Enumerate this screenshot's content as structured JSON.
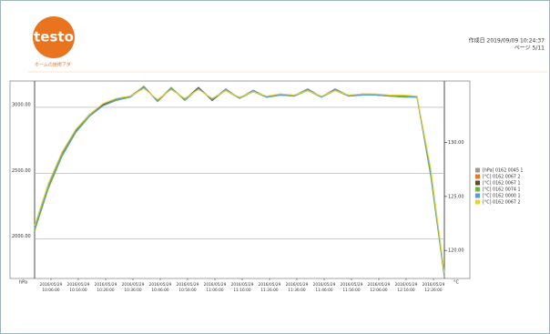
{
  "header": {
    "logo": "testo",
    "tagline": "ホームの技術アダ",
    "created": "作成日 2019/09/09 10:24:37",
    "page": "ページ 5/11"
  },
  "chart_data": {
    "type": "line",
    "y_unit": "hPa",
    "y2_unit": "°C",
    "x": [
      0,
      5,
      10,
      15,
      20,
      25,
      30,
      35,
      40,
      45,
      50,
      55,
      60,
      65,
      70,
      75,
      80,
      85,
      90,
      95,
      100,
      105,
      110,
      115,
      120,
      125,
      130,
      135,
      140,
      145,
      150
    ],
    "xlim": [
      0,
      150
    ],
    "xticks": [
      {
        "value": 6,
        "label": "2016/05/29 10:06:00"
      },
      {
        "value": 16,
        "label": "2016/05/29 10:16:00"
      },
      {
        "value": 26,
        "label": "2016/05/29 10:26:00"
      },
      {
        "value": 36,
        "label": "2016/05/29 10:36:00"
      },
      {
        "value": 46,
        "label": "2016/05/29 10:46:00"
      },
      {
        "value": 56,
        "label": "2016/05/29 10:56:00"
      },
      {
        "value": 66,
        "label": "2016/05/29 11:06:00"
      },
      {
        "value": 76,
        "label": "2016/05/29 11:16:00"
      },
      {
        "value": 86,
        "label": "2016/05/29 11:26:00"
      },
      {
        "value": 96,
        "label": "2016/05/29 11:36:00"
      },
      {
        "value": 106,
        "label": "2016/05/29 11:46:00"
      },
      {
        "value": 116,
        "label": "2016/05/29 11:56:00"
      },
      {
        "value": 126,
        "label": "2016/05/29 12:06:00"
      },
      {
        "value": 136,
        "label": "2016/05/29 12:16:00"
      },
      {
        "value": 146,
        "label": "2016/05/29 12:26:00"
      }
    ],
    "ylim": [
      1700,
      3200
    ],
    "yticks": [
      {
        "value": 2000,
        "label": "2000.00"
      },
      {
        "value": 2500,
        "label": "2500.00"
      },
      {
        "value": 3000,
        "label": "3000.00"
      }
    ],
    "y2lim": [
      117.4,
      135.7
    ],
    "y2ticks": [
      {
        "value": 120,
        "label": "120.00"
      },
      {
        "value": 125,
        "label": "125.00"
      },
      {
        "value": 130,
        "label": "130.00"
      }
    ],
    "grid": true,
    "legend": "right",
    "series": [
      {
        "name": "[hPa] 0162 0045 1",
        "color": "#9a9a9a",
        "values": [
          2080,
          2400,
          2640,
          2820,
          2940,
          3020,
          3060,
          3080,
          3160,
          3050,
          3150,
          3060,
          3150,
          3060,
          3140,
          3070,
          3130,
          3080,
          3100,
          3090,
          3140,
          3080,
          3140,
          3090,
          3100,
          3100,
          3090,
          3090,
          3080,
          2500,
          1720
        ]
      },
      {
        "name": "[°C] 0162 0067 2",
        "color": "#e8772e",
        "axis": "y2",
        "values": [
          122.0,
          125.9,
          128.8,
          131.0,
          132.5,
          133.5,
          134.0,
          134.2,
          135.2,
          133.8,
          135.0,
          134.0,
          135.0,
          134.0,
          134.9,
          134.1,
          134.8,
          134.2,
          134.4,
          134.3,
          134.9,
          134.2,
          134.9,
          134.3,
          134.4,
          134.4,
          134.3,
          134.3,
          134.2,
          127.1,
          117.6
        ]
      },
      {
        "name": "[°C] 0162 0067 1",
        "color": "#5a4a3a",
        "axis": "y2",
        "values": [
          122.2,
          126.1,
          129.0,
          131.1,
          132.6,
          133.5,
          134.0,
          134.3,
          135.1,
          133.9,
          135.0,
          134.0,
          135.1,
          133.9,
          134.9,
          134.1,
          134.8,
          134.2,
          134.5,
          134.3,
          134.9,
          134.2,
          134.9,
          134.3,
          134.5,
          134.4,
          134.3,
          134.3,
          134.2,
          127.4,
          117.8
        ]
      },
      {
        "name": "[°C] 0162 0074 1",
        "color": "#6db33f",
        "axis": "y2",
        "values": [
          121.8,
          125.7,
          128.7,
          130.9,
          132.4,
          133.4,
          133.9,
          134.2,
          135.2,
          133.8,
          135.1,
          133.9,
          135.0,
          134.0,
          134.8,
          134.1,
          134.7,
          134.2,
          134.4,
          134.3,
          134.8,
          134.2,
          134.8,
          134.3,
          134.4,
          134.4,
          134.3,
          134.2,
          134.2,
          126.9,
          117.5
        ]
      },
      {
        "name": "[°C] 0162 0000 1",
        "color": "#5b9bd5",
        "axis": "y2",
        "values": [
          122.1,
          126.0,
          128.9,
          131.0,
          132.5,
          133.4,
          134.0,
          134.2,
          135.1,
          133.9,
          135.0,
          134.0,
          135.0,
          134.0,
          134.9,
          134.1,
          134.8,
          134.2,
          134.4,
          134.3,
          134.9,
          134.2,
          134.9,
          134.3,
          134.4,
          134.4,
          134.3,
          134.3,
          134.2,
          127.2,
          117.7
        ]
      },
      {
        "name": "[°C] 0162 0067 2",
        "color": "#e5d33a",
        "axis": "y2",
        "values": [
          122.3,
          126.2,
          129.1,
          131.2,
          132.6,
          133.6,
          134.1,
          134.3,
          135.0,
          134.0,
          134.9,
          134.1,
          134.9,
          134.1,
          134.8,
          134.2,
          134.7,
          134.3,
          134.5,
          134.4,
          134.8,
          134.3,
          134.8,
          134.4,
          134.5,
          134.5,
          134.4,
          134.4,
          134.3,
          127.6,
          117.9
        ]
      }
    ]
  }
}
